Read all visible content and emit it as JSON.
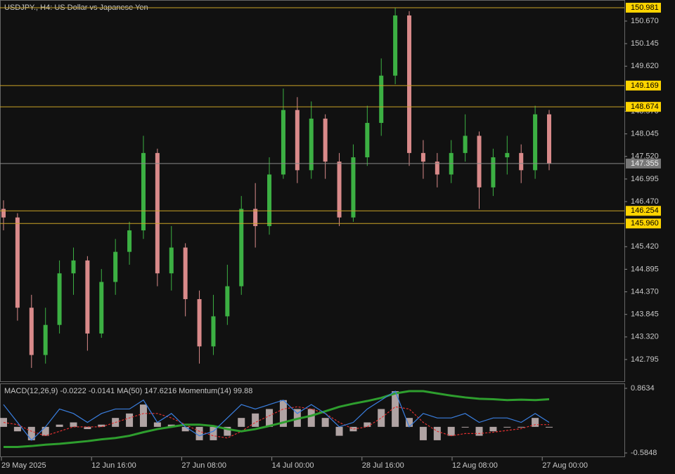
{
  "chart_data": {
    "type": "candlestick",
    "title": "USDJPY., H4:  US Dollar vs Japanese Yen",
    "open": [
      146.3,
      146.1,
      144.0,
      142.9,
      143.6,
      144.8,
      145.1,
      143.4,
      144.6,
      145.3,
      145.8,
      147.6,
      144.8,
      145.4,
      144.2,
      143.1,
      143.8,
      144.5,
      146.3,
      145.9,
      147.1,
      148.6,
      147.2,
      148.4,
      147.4,
      146.1,
      147.5,
      148.3,
      149.4,
      150.8,
      147.6,
      147.4,
      147.1,
      147.6,
      148.0,
      146.8,
      147.5,
      147.6,
      147.2,
      148.5
    ],
    "high": [
      146.5,
      146.2,
      144.3,
      144.0,
      145.1,
      145.4,
      145.2,
      144.9,
      145.6,
      146.0,
      148.0,
      147.7,
      145.9,
      145.5,
      144.4,
      144.3,
      145.0,
      146.6,
      146.9,
      147.5,
      149.1,
      148.9,
      148.8,
      148.5,
      147.6,
      147.8,
      148.7,
      149.8,
      150.98,
      150.9,
      147.9,
      147.6,
      147.9,
      148.5,
      148.1,
      147.7,
      148.0,
      147.8,
      148.7,
      148.6
    ],
    "low": [
      145.8,
      143.7,
      142.6,
      142.7,
      143.4,
      144.3,
      143.0,
      143.3,
      144.3,
      145.0,
      145.6,
      144.5,
      144.4,
      143.8,
      142.7,
      142.9,
      143.6,
      144.3,
      145.4,
      145.7,
      147.0,
      146.9,
      147.0,
      147.0,
      145.9,
      146.0,
      147.3,
      148.0,
      149.2,
      147.3,
      147.0,
      146.8,
      146.9,
      147.4,
      146.3,
      146.6,
      147.1,
      146.9,
      147.0,
      147.2
    ],
    "close": [
      146.1,
      144.0,
      142.9,
      143.6,
      144.8,
      145.1,
      143.4,
      144.6,
      145.3,
      145.8,
      147.6,
      144.8,
      145.4,
      144.2,
      143.1,
      143.8,
      144.5,
      146.3,
      145.9,
      147.1,
      148.6,
      147.2,
      148.4,
      147.4,
      146.1,
      147.5,
      148.3,
      149.4,
      150.8,
      147.6,
      147.4,
      147.1,
      147.6,
      148.0,
      146.8,
      147.5,
      147.6,
      147.2,
      148.5,
      147.36
    ],
    "up_color": "#3cb043",
    "down_color": "#d98a8a",
    "ylim": [
      142.288,
      151.16
    ],
    "yticks": [
      {
        "value": 150.67,
        "label": "150.670"
      },
      150.145,
      {
        "value": 149.62,
        "label": "149.620"
      },
      {
        "value": 148.57,
        "label": "148.570"
      },
      148.045,
      {
        "value": 147.52,
        "label": "147.520"
      },
      146.995,
      {
        "value": 146.47,
        "label": "146.470"
      },
      {
        "value": 145.42,
        "label": "145.420"
      },
      144.895,
      {
        "value": 144.37,
        "label": "144.370"
      },
      143.845,
      {
        "value": 143.32,
        "label": "143.320"
      },
      142.795
    ],
    "levels": [
      150.981,
      149.169,
      148.674,
      146.254,
      {
        "value": 145.96,
        "label": "145.960"
      }
    ],
    "level_color": "#c9a227",
    "current_price": 147.355,
    "xtick_labels": [
      "29 May 2025",
      "12 Jun 16:00",
      "27 Jun 08:00",
      "14 Jul 00:00",
      "28 Jul 16:00",
      "12 Aug 08:00",
      "27 Aug 00:00"
    ],
    "indicator": {
      "label": "MACD(12,26,9) -0.0222 -0.0141 MA(50) 147.6216 Momentum(14) 99.88",
      "ylim": [
        -0.679,
        0.974
      ],
      "yticks": [
        0.8634,
        -0.5848
      ],
      "histogram": {
        "color": "#d8c8c8",
        "values": [
          0.2,
          -0.1,
          -0.3,
          -0.2,
          0.05,
          0.1,
          -0.05,
          0.05,
          0.2,
          0.3,
          0.5,
          0.1,
          0.05,
          -0.1,
          -0.3,
          -0.3,
          -0.2,
          0.2,
          0.3,
          0.4,
          0.6,
          0.4,
          0.4,
          0.2,
          -0.2,
          -0.1,
          0.1,
          0.4,
          0.8,
          0.2,
          -0.3,
          -0.3,
          -0.2,
          0.0,
          -0.2,
          -0.1,
          0.0,
          0.0,
          0.2,
          0.0
        ]
      },
      "series": [
        {
          "color": "#e03030",
          "dashed": true,
          "values": [
            0.1,
            0.05,
            -0.1,
            -0.2,
            -0.1,
            0.0,
            0.0,
            0.0,
            0.1,
            0.2,
            0.3,
            0.3,
            0.2,
            0.05,
            -0.1,
            -0.2,
            -0.25,
            -0.1,
            0.1,
            0.25,
            0.4,
            0.45,
            0.4,
            0.3,
            0.1,
            -0.05,
            0.0,
            0.2,
            0.45,
            0.4,
            0.1,
            -0.1,
            -0.2,
            -0.15,
            -0.15,
            -0.12,
            -0.08,
            -0.04,
            0.05,
            0.05
          ]
        },
        {
          "color": "#2e9e2e",
          "width": 3,
          "values": [
            -0.45,
            -0.45,
            -0.43,
            -0.4,
            -0.38,
            -0.35,
            -0.32,
            -0.28,
            -0.25,
            -0.2,
            -0.12,
            -0.05,
            0.0,
            0.05,
            0.05,
            0.02,
            -0.05,
            -0.1,
            -0.05,
            0.02,
            0.1,
            0.18,
            0.25,
            0.35,
            0.45,
            0.52,
            0.58,
            0.65,
            0.75,
            0.8,
            0.8,
            0.75,
            0.7,
            0.66,
            0.63,
            0.62,
            0.6,
            0.61,
            0.6,
            0.62
          ]
        },
        {
          "color": "#3a7fe0",
          "values": [
            0.5,
            0.1,
            -0.3,
            0.0,
            0.4,
            0.3,
            0.1,
            0.3,
            0.4,
            0.4,
            0.6,
            0.1,
            0.3,
            0.0,
            -0.2,
            -0.1,
            0.2,
            0.5,
            0.4,
            0.5,
            0.6,
            0.3,
            0.5,
            0.3,
            0.0,
            0.1,
            0.4,
            0.6,
            0.8,
            0.0,
            0.3,
            0.2,
            0.2,
            0.3,
            0.1,
            0.2,
            0.2,
            0.1,
            0.3,
            0.1
          ]
        }
      ]
    }
  }
}
